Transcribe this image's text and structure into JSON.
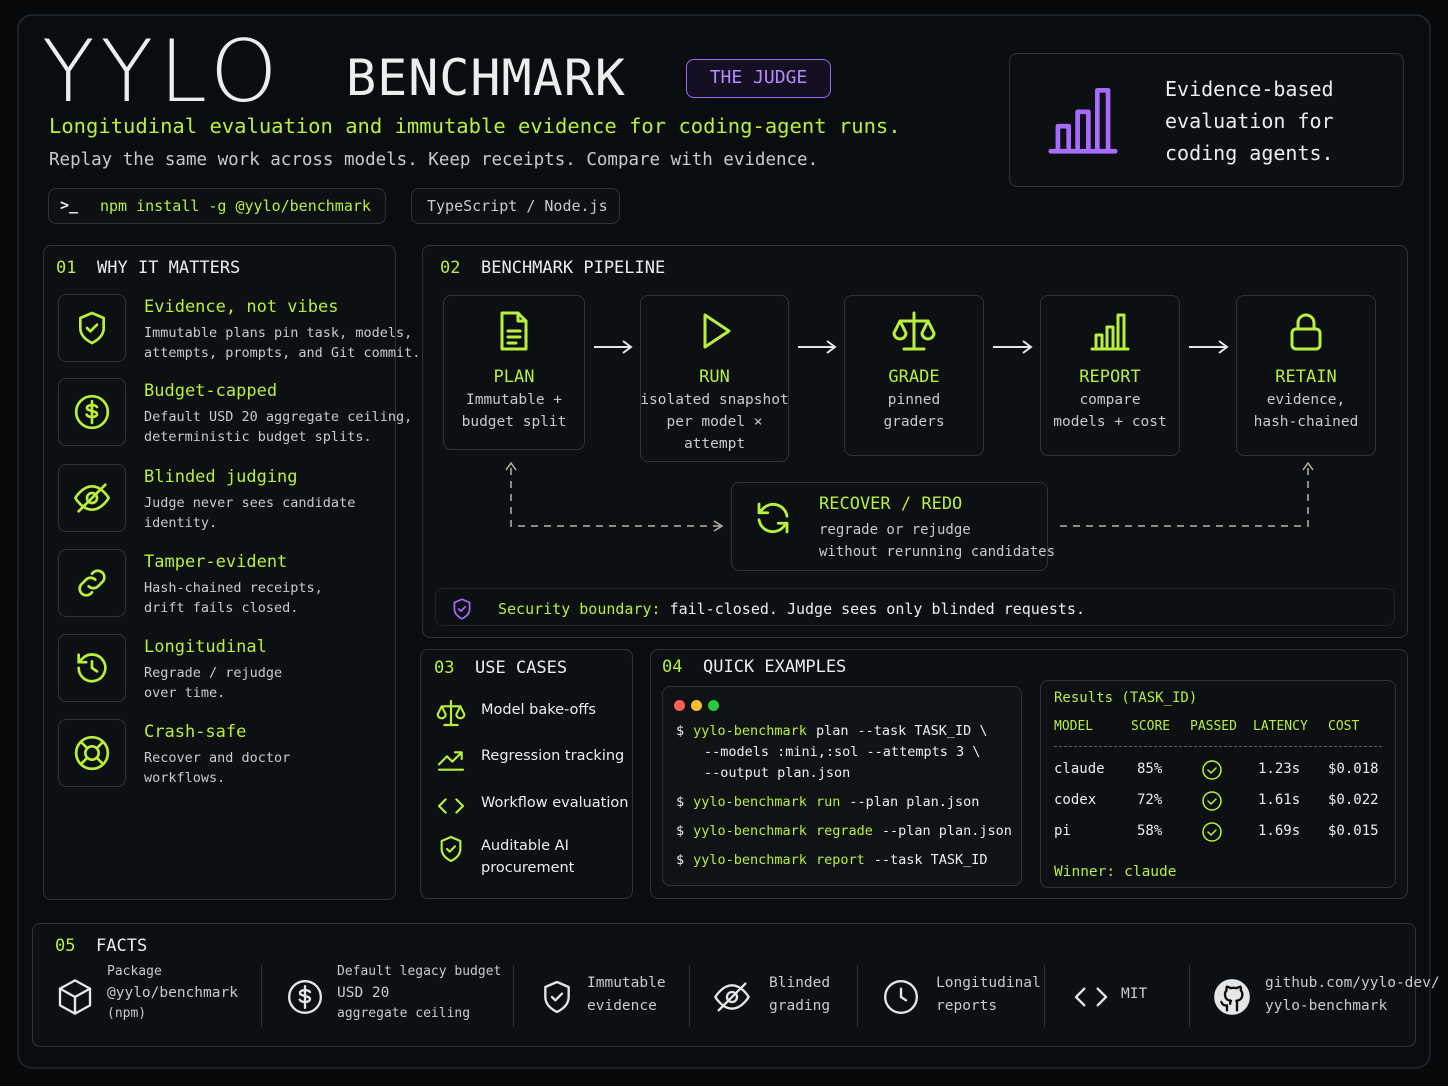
{
  "header": {
    "title": "YYLO",
    "title_suffix": "BENCHMARK",
    "badge": "THE JUDGE",
    "tagline": "Longitudinal evaluation and immutable evidence for coding-agent runs.",
    "subtitle": "Replay the same work across models. Keep receipts. Compare with evidence.",
    "install_prompt": ">_",
    "install": "npm install -g @yylo/benchmark",
    "stack": "TypeScript / Node.js",
    "callout": [
      "Evidence-based",
      "evaluation for",
      "coding agents."
    ]
  },
  "why": {
    "number": "01",
    "title": "WHY IT MATTERS",
    "items": [
      {
        "title": "Evidence, not vibes",
        "lines": [
          "Immutable plans pin task, models,",
          "attempts, prompts, and Git commit."
        ]
      },
      {
        "title": "Budget-capped",
        "lines": [
          "Default USD 20 aggregate ceiling,",
          "deterministic budget splits."
        ]
      },
      {
        "title": "Blinded judging",
        "lines": [
          "Judge never sees candidate",
          "identity."
        ]
      },
      {
        "title": "Tamper-evident",
        "lines": [
          "Hash-chained receipts,",
          "drift fails closed."
        ]
      },
      {
        "title": "Longitudinal",
        "lines": [
          "Regrade / rejudge",
          "over time."
        ]
      },
      {
        "title": "Crash-safe",
        "lines": [
          "Recover and doctor",
          "workflows."
        ]
      }
    ]
  },
  "pipeline": {
    "number": "02",
    "title": "BENCHMARK PIPELINE",
    "steps": [
      {
        "title": "PLAN",
        "lines": [
          "Immutable +",
          "budget split"
        ]
      },
      {
        "title": "RUN",
        "lines": [
          "isolated snapshot",
          "per model ×",
          "attempt"
        ]
      },
      {
        "title": "GRADE",
        "lines": [
          "pinned",
          "graders"
        ]
      },
      {
        "title": "REPORT",
        "lines": [
          "compare",
          "models + cost"
        ]
      },
      {
        "title": "RETAIN",
        "lines": [
          "evidence,",
          "hash-chained"
        ]
      }
    ],
    "recover": {
      "title": "RECOVER / REDO",
      "lines": [
        "regrade or rejudge",
        "without rerunning candidates"
      ]
    },
    "security": {
      "label": "Security boundary:",
      "text": "fail-closed. Judge sees only blinded requests."
    }
  },
  "use_cases": {
    "number": "03",
    "title": "USE CASES",
    "items": [
      {
        "lines": [
          "Model bake-offs"
        ]
      },
      {
        "lines": [
          "Regression tracking"
        ]
      },
      {
        "lines": [
          "Workflow evaluation"
        ]
      },
      {
        "lines": [
          "Auditable AI",
          "procurement"
        ]
      }
    ]
  },
  "examples": {
    "number": "04",
    "title": "QUICK EXAMPLES",
    "prompt": "$",
    "commands": [
      {
        "tool": "yylo-benchmark",
        "sub": "plan",
        "args": "--task TASK_ID \\",
        "cont": [
          "--models :mini,:sol --attempts 3 \\",
          "--output plan.json"
        ]
      },
      {
        "tool": "yylo-benchmark",
        "sub": "run",
        "args": "--plan plan.json",
        "cont": []
      },
      {
        "tool": "yylo-benchmark",
        "sub": "regrade",
        "args": "--plan plan.json",
        "cont": []
      },
      {
        "tool": "yylo-benchmark",
        "sub": "report",
        "args": "--task TASK_ID",
        "cont": []
      }
    ],
    "results": {
      "title": "Results (TASK_ID)",
      "columns": [
        "MODEL",
        "SCORE",
        "PASSED",
        "LATENCY",
        "COST"
      ],
      "rows": [
        {
          "model": "claude",
          "score": "85%",
          "latency": "1.23s",
          "cost": "$0.018"
        },
        {
          "model": "codex",
          "score": "72%",
          "latency": "1.61s",
          "cost": "$0.022"
        },
        {
          "model": "pi",
          "score": "58%",
          "latency": "1.69s",
          "cost": "$0.015"
        }
      ],
      "winner_label": "Winner:",
      "winner": "claude"
    }
  },
  "facts": {
    "number": "05",
    "title": "FACTS",
    "items": [
      {
        "lines": [
          "Package",
          "@yylo/benchmark",
          "(npm)"
        ]
      },
      {
        "lines": [
          "Default legacy budget",
          "USD 20",
          "aggregate ceiling"
        ]
      },
      {
        "lines": [
          "Immutable",
          "evidence"
        ]
      },
      {
        "lines": [
          "Blinded",
          "grading"
        ]
      },
      {
        "lines": [
          "Longitudinal",
          "reports"
        ]
      },
      {
        "lines": [
          "MIT"
        ]
      },
      {
        "lines": [
          "github.com/yylo-dev/",
          "yylo-benchmark"
        ]
      }
    ]
  }
}
